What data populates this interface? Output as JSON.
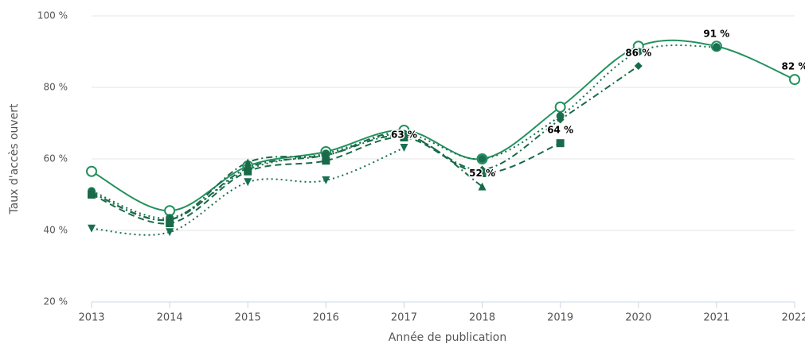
{
  "chart_data": {
    "type": "line",
    "x_label": "Année de publication",
    "y_label": "Taux d'accès ouvert",
    "x": [
      2013,
      2014,
      2015,
      2016,
      2017,
      2018,
      2019,
      2020,
      2021,
      2022
    ],
    "xlim": [
      2013,
      2022
    ],
    "xticks": [
      2013,
      2014,
      2015,
      2016,
      2017,
      2018,
      2019,
      2020,
      2021,
      2022
    ],
    "ylim": [
      20,
      100
    ],
    "yticks": [
      {
        "value": 20,
        "label": "20 %"
      },
      {
        "value": 40,
        "label": "40 %"
      },
      {
        "value": 60,
        "label": "60 %"
      },
      {
        "value": 80,
        "label": "80 %"
      },
      {
        "value": 100,
        "label": "100 %"
      }
    ],
    "grid": true,
    "series": [
      {
        "color": "#22915d",
        "dash": "solid",
        "marker": "open-circle",
        "values": [
          56.5,
          45.5,
          58,
          62,
          68,
          60,
          74.5,
          91.5,
          91.5,
          82.2
        ],
        "value_labels": [
          null,
          null,
          null,
          null,
          null,
          null,
          null,
          null,
          null,
          "82 %"
        ]
      },
      {
        "color": "#1a7050",
        "dash": "dotted",
        "marker": "circle",
        "values": [
          51,
          43.5,
          57,
          61.5,
          67,
          60,
          72,
          90,
          91.3,
          null
        ],
        "value_labels": [
          null,
          null,
          null,
          null,
          null,
          null,
          null,
          null,
          "91 %",
          null
        ]
      },
      {
        "color": "#1a6a4a",
        "dash": "dashdot",
        "marker": "diamond",
        "values": [
          50.5,
          43,
          57.5,
          61,
          66.5,
          57,
          71,
          86,
          null,
          null
        ],
        "value_labels": [
          null,
          null,
          null,
          null,
          null,
          null,
          null,
          "86 %",
          null,
          null
        ]
      },
      {
        "color": "#1a6a4a",
        "dash": "dashed",
        "marker": "square",
        "values": [
          50,
          42,
          56.5,
          59.5,
          66,
          56,
          64.4,
          null,
          null,
          null
        ],
        "value_labels": [
          null,
          null,
          null,
          null,
          null,
          null,
          "64 %",
          null,
          null,
          null
        ]
      },
      {
        "color": "#1a6a4a",
        "dash": "dashdot",
        "marker": "triangle-up",
        "values": [
          50.5,
          43,
          59,
          61,
          67,
          52.3,
          null,
          null,
          null,
          null
        ],
        "value_labels": [
          null,
          null,
          null,
          null,
          null,
          "52 %",
          null,
          null,
          null,
          null
        ]
      },
      {
        "color": "#1a7050",
        "dash": "dotted",
        "marker": "triangle-down",
        "values": [
          40.5,
          39.5,
          53.5,
          54,
          63.1,
          null,
          null,
          null,
          null,
          null
        ],
        "value_labels": [
          null,
          null,
          null,
          null,
          "63 %",
          null,
          null,
          null,
          null,
          null
        ]
      }
    ]
  }
}
